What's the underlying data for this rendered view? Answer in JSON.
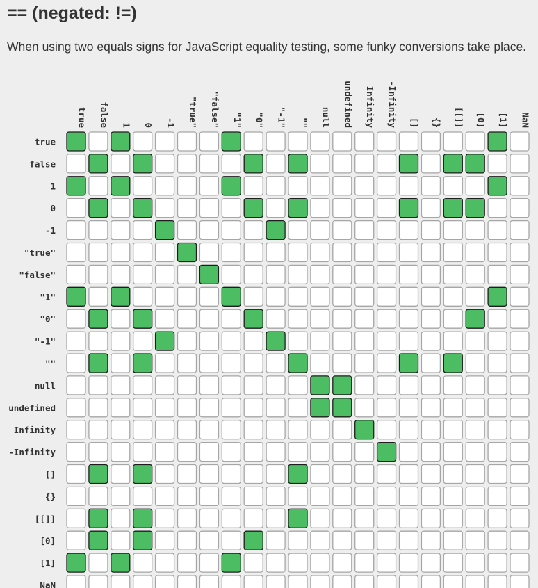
{
  "header": {
    "title": "== (negated: !=)",
    "description": "When using two equals signs for JavaScript equality testing, some funky conversions take place."
  },
  "colors": {
    "background": "#eeeeee",
    "equal_fill": "#4cbd62",
    "equal_border": "#1e1e1e",
    "not_equal_fill": "#ffffff",
    "not_equal_border": "#a6a6a6",
    "text": "#333333"
  },
  "chart_data": {
    "type": "heatmap",
    "legend": "none",
    "values_labels": [
      "true",
      "false",
      "1",
      "0",
      "-1",
      "\"true\"",
      "\"false\"",
      "\"1\"",
      "\"0\"",
      "\"-1\"",
      "\"\"",
      "null",
      "undefined",
      "Infinity",
      "-Infinity",
      "[]",
      "{}",
      "[[]]",
      "[0]",
      "[1]",
      "NaN"
    ],
    "matrix": [
      [
        1,
        0,
        1,
        0,
        0,
        0,
        0,
        1,
        0,
        0,
        0,
        0,
        0,
        0,
        0,
        0,
        0,
        0,
        0,
        1,
        0
      ],
      [
        0,
        1,
        0,
        1,
        0,
        0,
        0,
        0,
        1,
        0,
        1,
        0,
        0,
        0,
        0,
        1,
        0,
        1,
        1,
        0,
        0
      ],
      [
        1,
        0,
        1,
        0,
        0,
        0,
        0,
        1,
        0,
        0,
        0,
        0,
        0,
        0,
        0,
        0,
        0,
        0,
        0,
        1,
        0
      ],
      [
        0,
        1,
        0,
        1,
        0,
        0,
        0,
        0,
        1,
        0,
        1,
        0,
        0,
        0,
        0,
        1,
        0,
        1,
        1,
        0,
        0
      ],
      [
        0,
        0,
        0,
        0,
        1,
        0,
        0,
        0,
        0,
        1,
        0,
        0,
        0,
        0,
        0,
        0,
        0,
        0,
        0,
        0,
        0
      ],
      [
        0,
        0,
        0,
        0,
        0,
        1,
        0,
        0,
        0,
        0,
        0,
        0,
        0,
        0,
        0,
        0,
        0,
        0,
        0,
        0,
        0
      ],
      [
        0,
        0,
        0,
        0,
        0,
        0,
        1,
        0,
        0,
        0,
        0,
        0,
        0,
        0,
        0,
        0,
        0,
        0,
        0,
        0,
        0
      ],
      [
        1,
        0,
        1,
        0,
        0,
        0,
        0,
        1,
        0,
        0,
        0,
        0,
        0,
        0,
        0,
        0,
        0,
        0,
        0,
        1,
        0
      ],
      [
        0,
        1,
        0,
        1,
        0,
        0,
        0,
        0,
        1,
        0,
        0,
        0,
        0,
        0,
        0,
        0,
        0,
        0,
        1,
        0,
        0
      ],
      [
        0,
        0,
        0,
        0,
        1,
        0,
        0,
        0,
        0,
        1,
        0,
        0,
        0,
        0,
        0,
        0,
        0,
        0,
        0,
        0,
        0
      ],
      [
        0,
        1,
        0,
        1,
        0,
        0,
        0,
        0,
        0,
        0,
        1,
        0,
        0,
        0,
        0,
        1,
        0,
        1,
        0,
        0,
        0
      ],
      [
        0,
        0,
        0,
        0,
        0,
        0,
        0,
        0,
        0,
        0,
        0,
        1,
        1,
        0,
        0,
        0,
        0,
        0,
        0,
        0,
        0
      ],
      [
        0,
        0,
        0,
        0,
        0,
        0,
        0,
        0,
        0,
        0,
        0,
        1,
        1,
        0,
        0,
        0,
        0,
        0,
        0,
        0,
        0
      ],
      [
        0,
        0,
        0,
        0,
        0,
        0,
        0,
        0,
        0,
        0,
        0,
        0,
        0,
        1,
        0,
        0,
        0,
        0,
        0,
        0,
        0
      ],
      [
        0,
        0,
        0,
        0,
        0,
        0,
        0,
        0,
        0,
        0,
        0,
        0,
        0,
        0,
        1,
        0,
        0,
        0,
        0,
        0,
        0
      ],
      [
        0,
        1,
        0,
        1,
        0,
        0,
        0,
        0,
        0,
        0,
        1,
        0,
        0,
        0,
        0,
        0,
        0,
        0,
        0,
        0,
        0
      ],
      [
        0,
        0,
        0,
        0,
        0,
        0,
        0,
        0,
        0,
        0,
        0,
        0,
        0,
        0,
        0,
        0,
        0,
        0,
        0,
        0,
        0
      ],
      [
        0,
        1,
        0,
        1,
        0,
        0,
        0,
        0,
        0,
        0,
        1,
        0,
        0,
        0,
        0,
        0,
        0,
        0,
        0,
        0,
        0
      ],
      [
        0,
        1,
        0,
        1,
        0,
        0,
        0,
        0,
        1,
        0,
        0,
        0,
        0,
        0,
        0,
        0,
        0,
        0,
        0,
        0,
        0
      ],
      [
        1,
        0,
        1,
        0,
        0,
        0,
        0,
        1,
        0,
        0,
        0,
        0,
        0,
        0,
        0,
        0,
        0,
        0,
        0,
        0,
        0
      ],
      [
        0,
        0,
        0,
        0,
        0,
        0,
        0,
        0,
        0,
        0,
        0,
        0,
        0,
        0,
        0,
        0,
        0,
        0,
        0,
        0,
        0
      ]
    ]
  }
}
